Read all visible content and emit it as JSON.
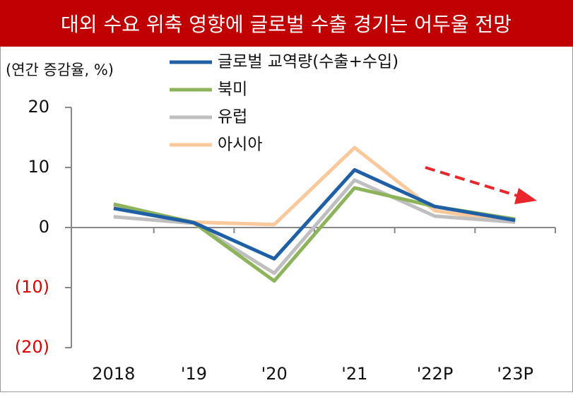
{
  "chart_data": {
    "type": "line",
    "title": "대외 수요 위축 영향에 글로벌 수출 경기는 어두울 전망",
    "y_label": "(연간 증감율, %)",
    "categories": [
      "2018",
      "'19",
      "'20",
      "'21",
      "'22P",
      "'23P"
    ],
    "series": [
      {
        "name": "글로벌 교역량(수출+수입)",
        "color": "#1f5fa6",
        "values": [
          3.2,
          0.8,
          -5.2,
          9.6,
          3.5,
          1.2
        ]
      },
      {
        "name": "북미",
        "color": "#8db45a",
        "values": [
          3.9,
          0.8,
          -8.9,
          6.6,
          3.5,
          1.4
        ]
      },
      {
        "name": "유럽",
        "color": "#bfbfbf",
        "values": [
          1.8,
          0.7,
          -7.6,
          7.9,
          1.9,
          0.9
        ]
      },
      {
        "name": "아시아",
        "color": "#f9c89b",
        "values": [
          3.8,
          0.9,
          0.5,
          13.3,
          2.8,
          0.9
        ]
      }
    ],
    "ylim": [
      -20,
      20
    ],
    "yticks": [
      20,
      10,
      0,
      {
        "value": -10,
        "label": "(10)"
      },
      {
        "value": -20,
        "label": "(20)"
      }
    ],
    "negative_tick_color": "#e00000",
    "title_background": "#c00000"
  }
}
